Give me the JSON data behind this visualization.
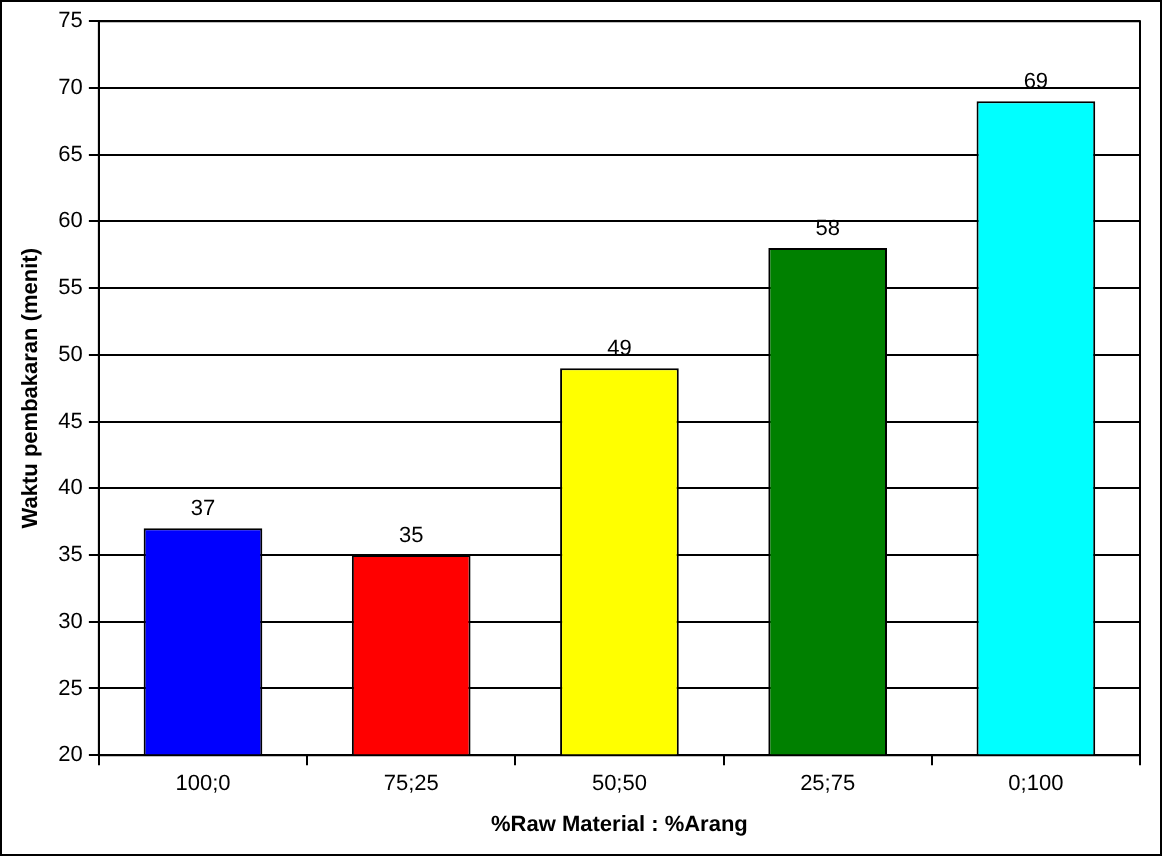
{
  "chart_data": {
    "type": "bar",
    "xlabel": "%Raw Material : %Arang",
    "ylabel": "Waktu pembakaran (menit)",
    "categories": [
      "100;0",
      "75;25",
      "50;50",
      "25;75",
      "0;100"
    ],
    "values": [
      37,
      35,
      49,
      58,
      69
    ],
    "colors": [
      "#0000ff",
      "#ff0000",
      "#ffff00",
      "#008000",
      "#00ffff"
    ],
    "ylim": [
      20,
      75
    ],
    "yticks": [
      20,
      25,
      30,
      35,
      40,
      45,
      50,
      55,
      60,
      65,
      70,
      75
    ],
    "grid": "y",
    "data_labels": true
  }
}
